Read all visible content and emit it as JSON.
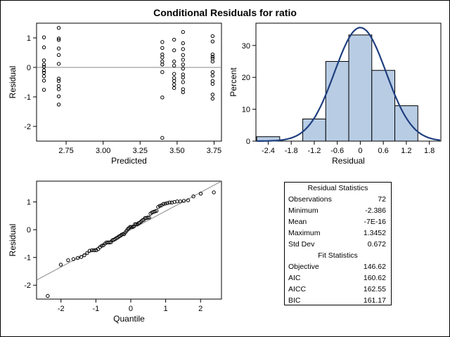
{
  "title": "Conditional Residuals for ratio",
  "chart_data": [
    {
      "type": "scatter",
      "id": "residual-vs-predicted",
      "xlabel": "Predicted",
      "ylabel": "Residual",
      "xlim": [
        2.55,
        3.8
      ],
      "ylim": [
        -2.5,
        1.5
      ],
      "xticks": [
        "2.75",
        "3.00",
        "3.25",
        "3.50",
        "3.75"
      ],
      "yticks": [
        "1",
        "0",
        "-1",
        "-2"
      ],
      "reference_line": 0,
      "points": [
        [
          2.6,
          1.02
        ],
        [
          2.6,
          0.68
        ],
        [
          2.6,
          0.24
        ],
        [
          2.6,
          0.1
        ],
        [
          2.6,
          0.02
        ],
        [
          2.6,
          -0.1
        ],
        [
          2.6,
          -0.18
        ],
        [
          2.6,
          -0.3
        ],
        [
          2.6,
          -0.45
        ],
        [
          2.6,
          -0.76
        ],
        [
          2.7,
          1.34
        ],
        [
          2.7,
          0.98
        ],
        [
          2.7,
          0.93
        ],
        [
          2.7,
          0.64
        ],
        [
          2.7,
          0.42
        ],
        [
          2.7,
          0.12
        ],
        [
          2.7,
          -0.38
        ],
        [
          2.7,
          -0.46
        ],
        [
          2.7,
          -0.63
        ],
        [
          2.7,
          -0.74
        ],
        [
          2.7,
          -0.98
        ],
        [
          2.7,
          -1.26
        ],
        [
          3.4,
          0.86
        ],
        [
          3.4,
          0.66
        ],
        [
          3.4,
          0.44
        ],
        [
          3.4,
          0.34
        ],
        [
          3.4,
          0.2
        ],
        [
          3.4,
          0.1
        ],
        [
          3.4,
          -0.16
        ],
        [
          3.4,
          -1.02
        ],
        [
          3.4,
          -2.39
        ],
        [
          3.48,
          0.94
        ],
        [
          3.48,
          0.58
        ],
        [
          3.48,
          0.2
        ],
        [
          3.48,
          0.06
        ],
        [
          3.48,
          -0.22
        ],
        [
          3.48,
          -0.36
        ],
        [
          3.48,
          -0.46
        ],
        [
          3.48,
          -0.58
        ],
        [
          3.48,
          -0.7
        ],
        [
          3.54,
          1.2
        ],
        [
          3.54,
          0.82
        ],
        [
          3.54,
          0.62
        ],
        [
          3.54,
          0.42
        ],
        [
          3.54,
          0.26
        ],
        [
          3.54,
          0.1
        ],
        [
          3.54,
          -0.04
        ],
        [
          3.54,
          -0.24
        ],
        [
          3.54,
          -0.34
        ],
        [
          3.54,
          -0.5
        ],
        [
          3.54,
          -0.74
        ],
        [
          3.54,
          -0.84
        ],
        [
          3.74,
          1.06
        ],
        [
          3.74,
          0.88
        ],
        [
          3.74,
          0.44
        ],
        [
          3.74,
          0.36
        ],
        [
          3.74,
          0.3
        ],
        [
          3.74,
          0.2
        ],
        [
          3.74,
          -0.16
        ],
        [
          3.74,
          -0.28
        ],
        [
          3.74,
          -0.46
        ],
        [
          3.74,
          -0.56
        ],
        [
          3.74,
          -0.92
        ],
        [
          3.74,
          -1.06
        ]
      ]
    },
    {
      "type": "bar",
      "id": "residual-histogram",
      "xlabel": "Residual",
      "ylabel": "Percent",
      "xlim": [
        -2.72,
        2.1
      ],
      "ylim": [
        0,
        37
      ],
      "xticks": [
        "-2.4",
        "-1.8",
        "-1.2",
        "-0.6",
        "0",
        "0.6",
        "1.2",
        "1.8"
      ],
      "yticks": [
        "0",
        "10",
        "20",
        "30"
      ],
      "bins": [
        {
          "from": -2.7,
          "to": -2.1,
          "percent": 1.39
        },
        {
          "from": -2.1,
          "to": -1.5,
          "percent": 0
        },
        {
          "from": -1.5,
          "to": -0.9,
          "percent": 6.94
        },
        {
          "from": -0.9,
          "to": -0.3,
          "percent": 25.0
        },
        {
          "from": -0.3,
          "to": 0.3,
          "percent": 33.3
        },
        {
          "from": 0.3,
          "to": 0.9,
          "percent": 22.2
        },
        {
          "from": 0.9,
          "to": 1.5,
          "percent": 11.1
        }
      ],
      "bar_color": "#b8cce4",
      "normal_curve": {
        "mean": 0,
        "std": 0.672,
        "color": "#1f3f7f"
      }
    },
    {
      "type": "scatter",
      "id": "qq-plot",
      "xlabel": "Quantile",
      "ylabel": "Residual",
      "xlim": [
        -2.7,
        2.6
      ],
      "ylim": [
        -2.5,
        1.75
      ],
      "xticks": [
        "-2",
        "-1",
        "0",
        "1",
        "2"
      ],
      "yticks": [
        "1",
        "0",
        "-1",
        "-2"
      ],
      "reference_line": {
        "intercept": 0,
        "slope": 0.672
      },
      "n_points": 72,
      "sorted_residuals": [
        -2.386,
        -1.26,
        -1.1,
        -1.06,
        -1.02,
        -0.98,
        -0.92,
        -0.84,
        -0.76,
        -0.74,
        -0.74,
        -0.74,
        -0.7,
        -0.63,
        -0.58,
        -0.56,
        -0.5,
        -0.46,
        -0.46,
        -0.46,
        -0.45,
        -0.38,
        -0.36,
        -0.34,
        -0.3,
        -0.28,
        -0.24,
        -0.22,
        -0.18,
        -0.16,
        -0.16,
        -0.1,
        -0.04,
        0.02,
        0.06,
        0.1,
        0.1,
        0.1,
        0.12,
        0.2,
        0.2,
        0.2,
        0.24,
        0.26,
        0.3,
        0.34,
        0.36,
        0.42,
        0.42,
        0.44,
        0.44,
        0.58,
        0.62,
        0.64,
        0.66,
        0.68,
        0.82,
        0.86,
        0.88,
        0.93,
        0.94,
        0.96,
        0.98,
        0.98,
        1.0,
        1.02,
        1.02,
        1.04,
        1.06,
        1.2,
        1.3,
        1.3452
      ]
    }
  ],
  "stats_table": {
    "residual_header": "Residual Statistics",
    "residual_rows": [
      {
        "label": "Observations",
        "value": "72"
      },
      {
        "label": "Minimum",
        "value": "-2.386"
      },
      {
        "label": "Mean",
        "value": "-7E-16"
      },
      {
        "label": "Maximum",
        "value": "1.3452"
      },
      {
        "label": "Std Dev",
        "value": "0.672"
      }
    ],
    "fit_header": "Fit Statistics",
    "fit_rows": [
      {
        "label": "Objective",
        "value": "146.62"
      },
      {
        "label": "AIC",
        "value": "160.62"
      },
      {
        "label": "AICC",
        "value": "162.55"
      },
      {
        "label": "BIC",
        "value": "161.17"
      }
    ]
  }
}
